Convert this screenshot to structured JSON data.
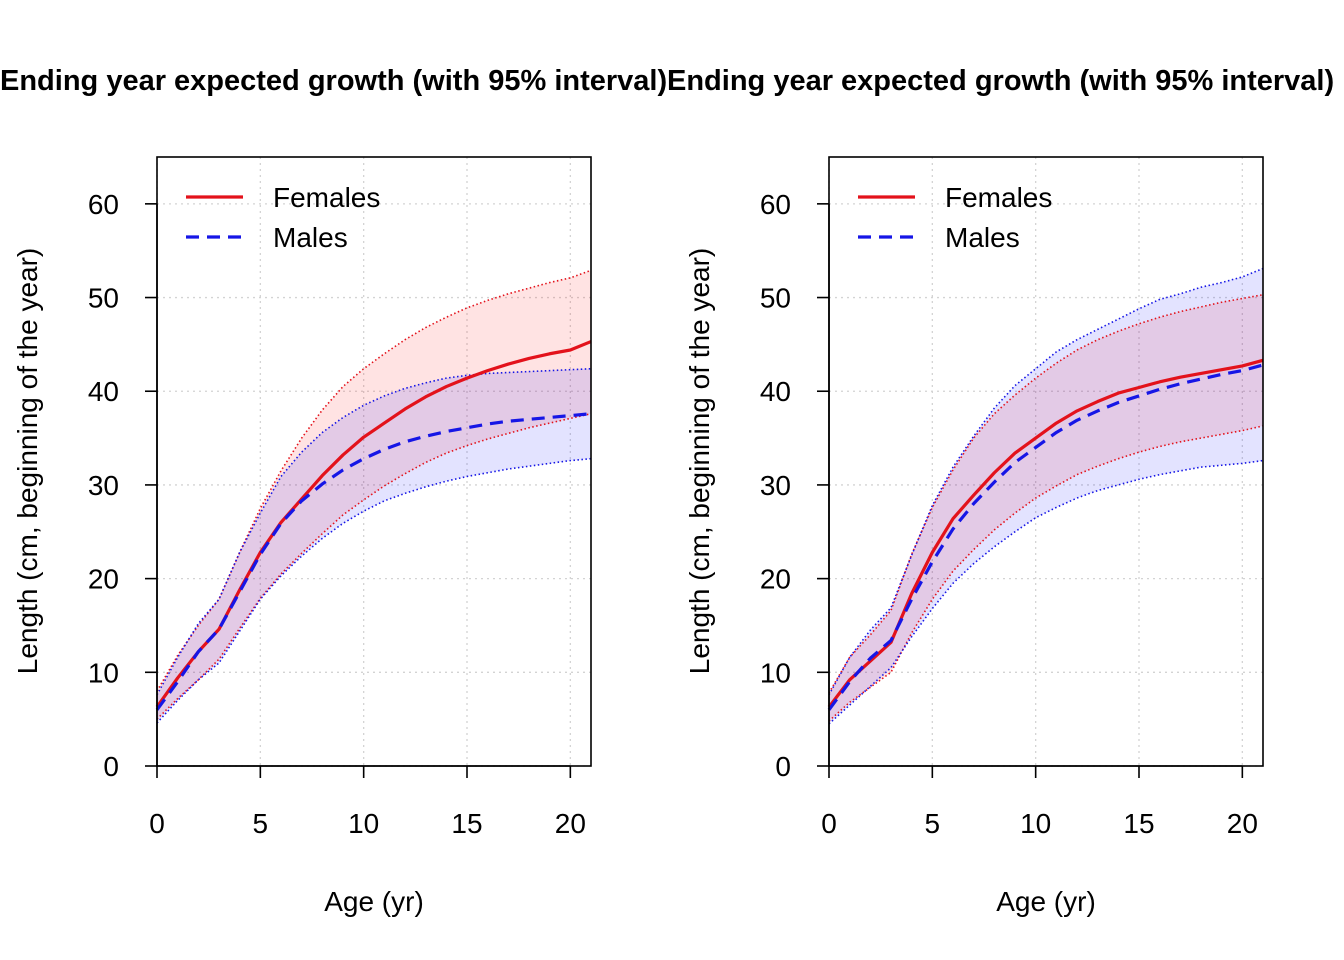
{
  "colors": {
    "females": "#e3121b",
    "males": "#1616e6",
    "females_fill": "rgba(255,0,0,0.11)",
    "males_fill": "rgba(0,0,255,0.11)",
    "grid": "#d3d3d3"
  },
  "chart_data": [
    {
      "type": "line",
      "title": "Ending year expected growth (with 95% interval)",
      "xlabel": "Age (yr)",
      "ylabel": "Length (cm, beginning of the year)",
      "xlim": [
        0,
        21
      ],
      "ylim": [
        0,
        65
      ],
      "xticks": [
        0,
        5,
        10,
        15,
        20
      ],
      "yticks": [
        0,
        10,
        20,
        30,
        40,
        50,
        60
      ],
      "grid": true,
      "legend_position": "top-left",
      "legend": [
        {
          "label": "Females",
          "style": "solid",
          "color": "#e3121b"
        },
        {
          "label": "Males",
          "style": "dashed",
          "color": "#1616e6"
        }
      ],
      "x": [
        0,
        1,
        2,
        3,
        4,
        5,
        6,
        7,
        8,
        9,
        10,
        11,
        12,
        13,
        14,
        15,
        16,
        17,
        18,
        19,
        20,
        21
      ],
      "series": [
        {
          "name": "Females",
          "values": [
            6.3,
            9.4,
            12.2,
            14.6,
            18.8,
            22.8,
            26.0,
            28.5,
            31.0,
            33.2,
            35.1,
            36.6,
            38.1,
            39.4,
            40.5,
            41.4,
            42.2,
            42.9,
            43.5,
            44.0,
            44.4,
            45.3
          ],
          "lower": [
            5.0,
            7.2,
            9.2,
            11.4,
            14.7,
            17.9,
            20.5,
            22.7,
            24.8,
            26.8,
            28.4,
            29.9,
            31.2,
            32.4,
            33.4,
            34.2,
            34.9,
            35.5,
            36.1,
            36.6,
            37.1,
            37.6
          ],
          "upper": [
            8.0,
            11.8,
            15.0,
            17.8,
            22.8,
            27.5,
            31.5,
            35.0,
            38.0,
            40.5,
            42.4,
            44.0,
            45.5,
            46.8,
            47.9,
            48.9,
            49.7,
            50.4,
            51.0,
            51.6,
            52.1,
            52.9
          ]
        },
        {
          "name": "Males",
          "values": [
            6.0,
            9.0,
            12.2,
            14.6,
            18.6,
            22.6,
            25.9,
            28.3,
            30.1,
            31.6,
            32.8,
            33.8,
            34.6,
            35.2,
            35.7,
            36.1,
            36.5,
            36.8,
            37.0,
            37.2,
            37.4,
            37.6
          ],
          "lower": [
            4.6,
            7.0,
            9.2,
            11.0,
            14.4,
            17.8,
            20.3,
            22.4,
            24.3,
            25.9,
            27.2,
            28.3,
            29.1,
            29.8,
            30.4,
            30.9,
            31.3,
            31.7,
            32.0,
            32.3,
            32.6,
            32.8
          ],
          "upper": [
            7.6,
            11.6,
            15.2,
            17.8,
            22.8,
            27.0,
            30.9,
            33.5,
            35.6,
            37.2,
            38.5,
            39.5,
            40.3,
            40.9,
            41.4,
            41.7,
            41.9,
            42.0,
            42.1,
            42.2,
            42.3,
            42.4
          ]
        }
      ]
    },
    {
      "type": "line",
      "title": "Ending year expected growth (with 95% interval)",
      "xlabel": "Age (yr)",
      "ylabel": "Length (cm, beginning of the year)",
      "xlim": [
        0,
        21
      ],
      "ylim": [
        0,
        65
      ],
      "xticks": [
        0,
        5,
        10,
        15,
        20
      ],
      "yticks": [
        0,
        10,
        20,
        30,
        40,
        50,
        60
      ],
      "grid": true,
      "legend_position": "top-left",
      "legend": [
        {
          "label": "Females",
          "style": "solid",
          "color": "#e3121b"
        },
        {
          "label": "Males",
          "style": "dashed",
          "color": "#1616e6"
        }
      ],
      "x": [
        0,
        1,
        2,
        3,
        4,
        5,
        6,
        7,
        8,
        9,
        10,
        11,
        12,
        13,
        14,
        15,
        16,
        17,
        18,
        19,
        20,
        21
      ],
      "series": [
        {
          "name": "Females",
          "values": [
            6.3,
            9.2,
            11.2,
            13.2,
            18.4,
            22.8,
            26.4,
            28.9,
            31.3,
            33.4,
            35.0,
            36.6,
            37.9,
            38.9,
            39.8,
            40.4,
            41.0,
            41.5,
            41.9,
            42.3,
            42.7,
            43.3
          ],
          "lower": [
            4.8,
            6.8,
            8.4,
            10.0,
            14.2,
            17.8,
            20.8,
            23.1,
            25.2,
            27.0,
            28.6,
            29.9,
            31.1,
            32.0,
            32.8,
            33.5,
            34.1,
            34.6,
            35.0,
            35.4,
            35.8,
            36.3
          ],
          "upper": [
            7.8,
            11.6,
            14.0,
            16.6,
            22.6,
            27.6,
            31.6,
            35.0,
            37.6,
            39.6,
            41.4,
            43.0,
            44.4,
            45.5,
            46.4,
            47.2,
            47.9,
            48.5,
            49.0,
            49.5,
            49.9,
            50.3
          ]
        },
        {
          "name": "Males",
          "values": [
            6.0,
            9.0,
            11.5,
            13.4,
            17.8,
            21.8,
            25.3,
            28.0,
            30.3,
            32.4,
            34.0,
            35.6,
            36.9,
            37.9,
            38.8,
            39.5,
            40.2,
            40.8,
            41.3,
            41.8,
            42.2,
            42.8
          ],
          "lower": [
            4.5,
            6.5,
            8.5,
            10.5,
            13.8,
            16.8,
            19.5,
            21.6,
            23.4,
            25.0,
            26.5,
            27.6,
            28.6,
            29.4,
            30.0,
            30.6,
            31.1,
            31.5,
            31.9,
            32.1,
            32.3,
            32.6
          ],
          "upper": [
            7.6,
            11.6,
            14.5,
            16.9,
            22.5,
            27.8,
            31.9,
            35.2,
            38.2,
            40.6,
            42.4,
            44.2,
            45.5,
            46.6,
            47.7,
            48.8,
            49.8,
            50.4,
            51.1,
            51.6,
            52.2,
            53.1
          ]
        }
      ]
    }
  ]
}
